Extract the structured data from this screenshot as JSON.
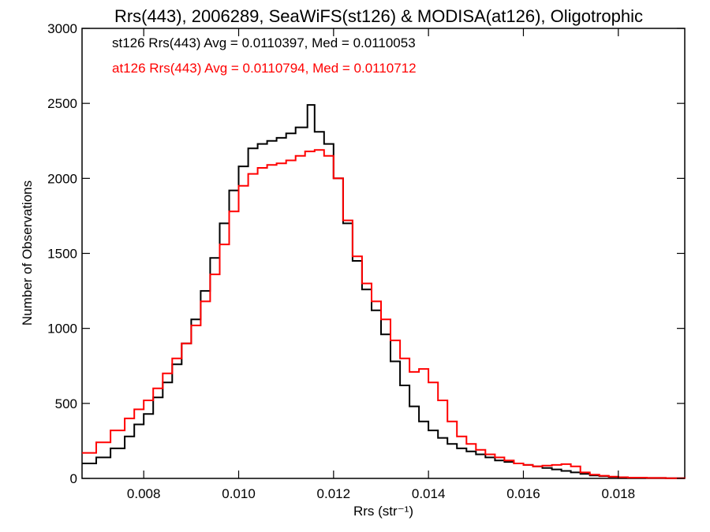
{
  "chart_data": {
    "type": "histogram-step",
    "title": "Rrs(443), 2006289, SeaWiFS(st126) & MODISA(at126), Oligotrophic",
    "xlabel": "Rrs (str⁻¹)",
    "ylabel": "Number of Observations",
    "xlim": [
      0.0067,
      0.0194
    ],
    "ylim": [
      0,
      3000
    ],
    "xticks": [
      0.008,
      0.01,
      0.012,
      0.014,
      0.016,
      0.018
    ],
    "xtick_labels": [
      "0.008",
      "0.010",
      "0.012",
      "0.014",
      "0.016",
      "0.018"
    ],
    "yticks": [
      0,
      500,
      1000,
      1500,
      2000,
      2500,
      3000
    ],
    "ytick_labels": [
      "0",
      "500",
      "1000",
      "1500",
      "2000",
      "2500",
      "3000"
    ],
    "legend_placement": "top-left",
    "grid": false,
    "series": [
      {
        "label": "st126 Rrs(443) Avg = 0.0110397, Med = 0.0110053",
        "color": "#000000",
        "points": [
          [
            0.0067,
            100
          ],
          [
            0.007,
            140
          ],
          [
            0.0073,
            200
          ],
          [
            0.0076,
            280
          ],
          [
            0.0078,
            360
          ],
          [
            0.008,
            430
          ],
          [
            0.0082,
            540
          ],
          [
            0.0084,
            640
          ],
          [
            0.0086,
            760
          ],
          [
            0.0088,
            900
          ],
          [
            0.009,
            1060
          ],
          [
            0.0092,
            1250
          ],
          [
            0.0094,
            1470
          ],
          [
            0.0096,
            1700
          ],
          [
            0.0098,
            1920
          ],
          [
            0.01,
            2080
          ],
          [
            0.0102,
            2200
          ],
          [
            0.0104,
            2230
          ],
          [
            0.0106,
            2250
          ],
          [
            0.0108,
            2270
          ],
          [
            0.011,
            2300
          ],
          [
            0.0112,
            2340
          ],
          [
            0.01145,
            2490
          ],
          [
            0.0116,
            2310
          ],
          [
            0.0118,
            2230
          ],
          [
            0.012,
            2000
          ],
          [
            0.0122,
            1700
          ],
          [
            0.0124,
            1450
          ],
          [
            0.0126,
            1260
          ],
          [
            0.0128,
            1120
          ],
          [
            0.013,
            960
          ],
          [
            0.0132,
            780
          ],
          [
            0.0134,
            620
          ],
          [
            0.0136,
            480
          ],
          [
            0.0138,
            380
          ],
          [
            0.014,
            320
          ],
          [
            0.0142,
            270
          ],
          [
            0.0144,
            230
          ],
          [
            0.0146,
            200
          ],
          [
            0.0148,
            180
          ],
          [
            0.015,
            160
          ],
          [
            0.0152,
            140
          ],
          [
            0.0154,
            120
          ],
          [
            0.0156,
            110
          ],
          [
            0.0158,
            100
          ],
          [
            0.016,
            90
          ],
          [
            0.0162,
            80
          ],
          [
            0.0164,
            70
          ],
          [
            0.0166,
            60
          ],
          [
            0.0168,
            50
          ],
          [
            0.017,
            40
          ],
          [
            0.0172,
            30
          ],
          [
            0.0174,
            20
          ],
          [
            0.0176,
            15
          ],
          [
            0.0178,
            10
          ],
          [
            0.018,
            8
          ],
          [
            0.0182,
            5
          ],
          [
            0.0186,
            3
          ],
          [
            0.019,
            1
          ],
          [
            0.0194,
            0
          ]
        ]
      },
      {
        "label": "at126 Rrs(443) Avg = 0.0110794, Med = 0.0110712",
        "color": "#ff0000",
        "points": [
          [
            0.0067,
            170
          ],
          [
            0.007,
            240
          ],
          [
            0.0073,
            320
          ],
          [
            0.0076,
            400
          ],
          [
            0.0078,
            460
          ],
          [
            0.008,
            520
          ],
          [
            0.0082,
            600
          ],
          [
            0.0084,
            700
          ],
          [
            0.0086,
            800
          ],
          [
            0.0088,
            900
          ],
          [
            0.009,
            1020
          ],
          [
            0.0092,
            1180
          ],
          [
            0.0094,
            1360
          ],
          [
            0.0096,
            1560
          ],
          [
            0.0098,
            1780
          ],
          [
            0.01,
            1950
          ],
          [
            0.0102,
            2030
          ],
          [
            0.0104,
            2070
          ],
          [
            0.0106,
            2090
          ],
          [
            0.0108,
            2100
          ],
          [
            0.011,
            2120
          ],
          [
            0.0112,
            2150
          ],
          [
            0.0114,
            2180
          ],
          [
            0.0116,
            2190
          ],
          [
            0.0118,
            2150
          ],
          [
            0.012,
            2000
          ],
          [
            0.0122,
            1720
          ],
          [
            0.0124,
            1480
          ],
          [
            0.0126,
            1300
          ],
          [
            0.0128,
            1180
          ],
          [
            0.013,
            1060
          ],
          [
            0.0132,
            920
          ],
          [
            0.0134,
            800
          ],
          [
            0.0136,
            710
          ],
          [
            0.0138,
            730
          ],
          [
            0.014,
            640
          ],
          [
            0.0142,
            520
          ],
          [
            0.0144,
            380
          ],
          [
            0.0146,
            280
          ],
          [
            0.0148,
            230
          ],
          [
            0.015,
            190
          ],
          [
            0.0152,
            160
          ],
          [
            0.0154,
            140
          ],
          [
            0.0156,
            120
          ],
          [
            0.0158,
            100
          ],
          [
            0.016,
            90
          ],
          [
            0.0162,
            80
          ],
          [
            0.0164,
            85
          ],
          [
            0.0166,
            90
          ],
          [
            0.0168,
            95
          ],
          [
            0.017,
            80
          ],
          [
            0.0172,
            40
          ],
          [
            0.0174,
            25
          ],
          [
            0.0176,
            18
          ],
          [
            0.0178,
            12
          ],
          [
            0.018,
            8
          ],
          [
            0.0182,
            5
          ],
          [
            0.0186,
            3
          ],
          [
            0.019,
            1
          ],
          [
            0.0194,
            0
          ]
        ]
      }
    ]
  }
}
